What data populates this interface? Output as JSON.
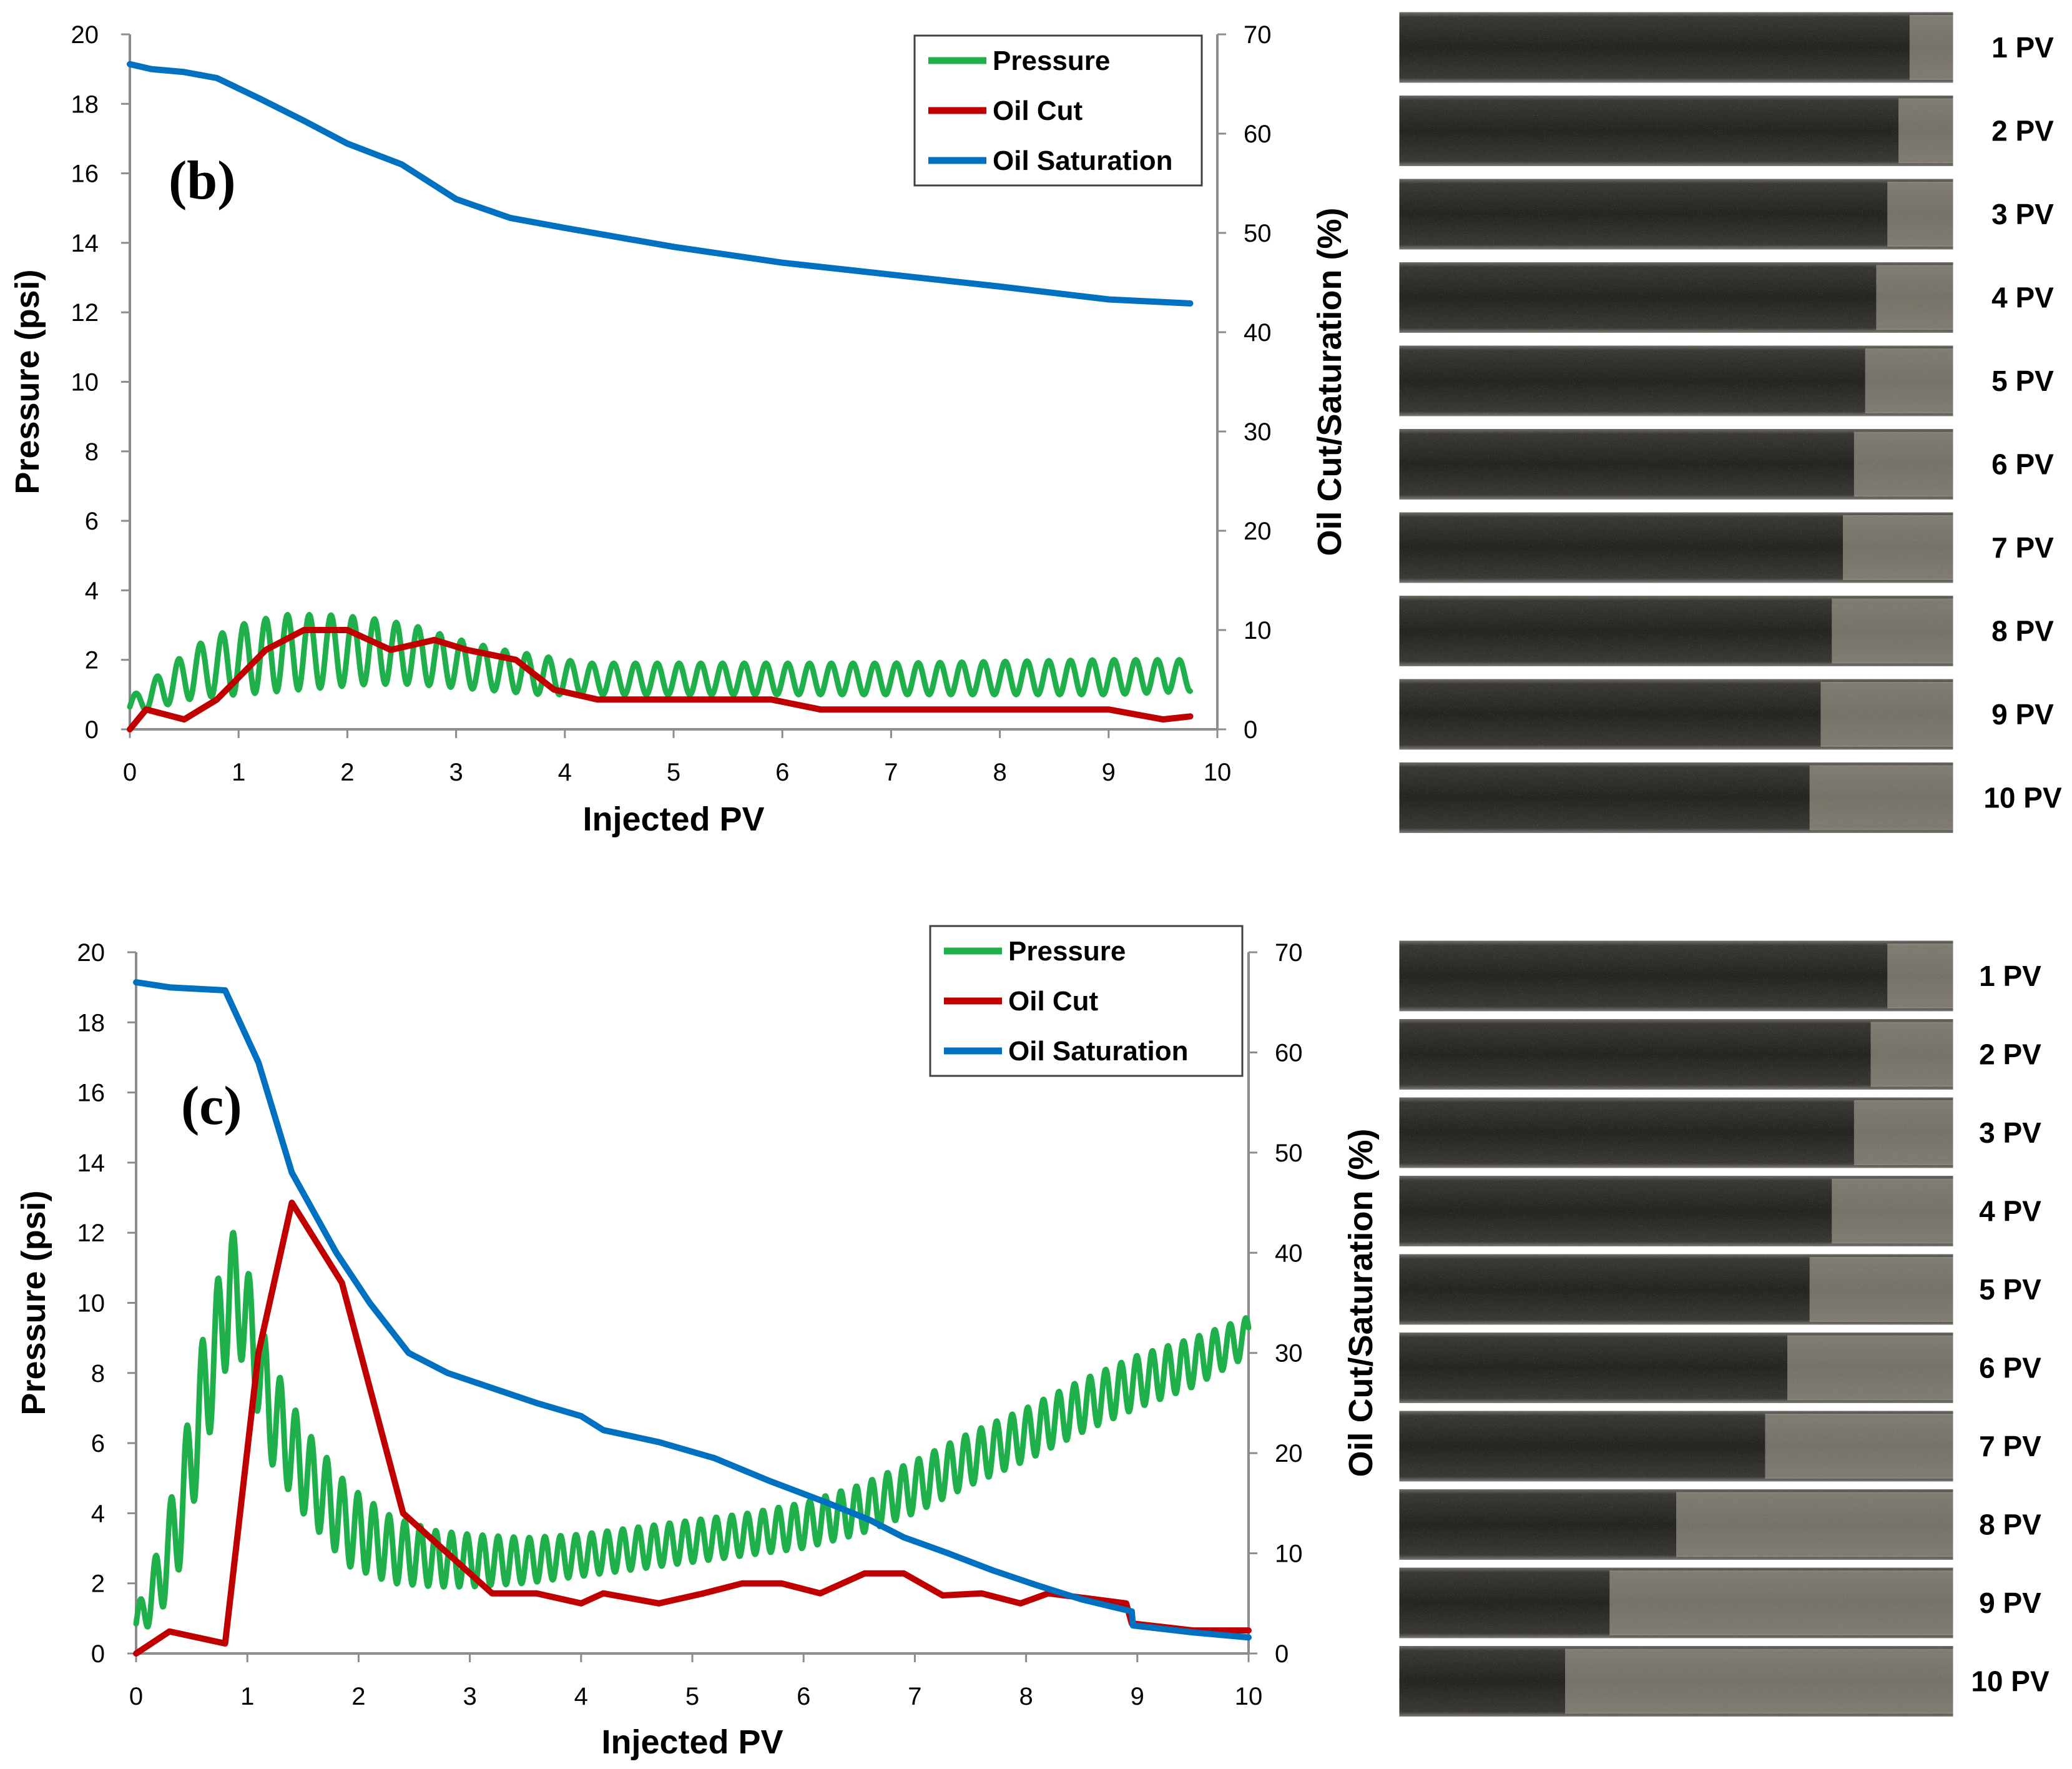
{
  "chart_data": [
    {
      "type": "line",
      "panel_label": "(b)",
      "xlabel": "Injected PV",
      "ylabel": "Pressure (psi)",
      "y2label": "Oil Cut/Saturation (%)",
      "xlim": [
        0,
        10
      ],
      "ylim": [
        0,
        20
      ],
      "y2lim": [
        0,
        70
      ],
      "xticks": [
        "0",
        "1",
        "2",
        "3",
        "4",
        "5",
        "6",
        "7",
        "8",
        "9",
        "10"
      ],
      "yticks": [
        "0",
        "2",
        "4",
        "6",
        "8",
        "10",
        "12",
        "14",
        "16",
        "18",
        "20"
      ],
      "y2ticks": [
        "0",
        "10",
        "20",
        "30",
        "40",
        "50",
        "60",
        "70"
      ],
      "legend": [
        "Pressure",
        "Oil Cut",
        "Oil Saturation"
      ],
      "legend_position": "top-right",
      "series": [
        {
          "name": "Pressure",
          "axis": "left",
          "color": "#1fb04b",
          "oscillation_period_pv": 0.2,
          "envelope": {
            "x": [
              0,
              0.2,
              0.6,
              1.0,
              1.4,
              1.8,
              2.2,
              2.6,
              3.0,
              3.4,
              3.8,
              4.2,
              5.0,
              6.0,
              7.0,
              8.0,
              9.0,
              9.75
            ],
            "high": [
              0.9,
              1.4,
              2.4,
              3.0,
              3.3,
              3.3,
              3.2,
              3.0,
              2.6,
              2.3,
              2.1,
              1.9,
              1.9,
              1.9,
              1.9,
              1.95,
              2.0,
              2.0
            ],
            "low": [
              0.4,
              0.6,
              0.9,
              1.0,
              1.1,
              1.2,
              1.3,
              1.3,
              1.2,
              1.1,
              1.0,
              1.0,
              1.0,
              1.0,
              1.0,
              1.0,
              1.0,
              1.1
            ]
          }
        },
        {
          "name": "Oil Cut",
          "axis": "right",
          "color": "#c00000",
          "x": [
            0,
            0.15,
            0.5,
            0.8,
            1.25,
            1.6,
            2.0,
            2.4,
            2.8,
            3.1,
            3.55,
            3.9,
            4.3,
            5.0,
            5.9,
            6.35,
            7.0,
            8.0,
            9.0,
            9.5,
            9.75
          ],
          "y": [
            0,
            2,
            1,
            3,
            8,
            10,
            10,
            8,
            9,
            8,
            7,
            4,
            3,
            3,
            3,
            2,
            2,
            2,
            2,
            1,
            1.3
          ]
        },
        {
          "name": "Oil Saturation",
          "axis": "right",
          "color": "#0070c0",
          "x": [
            0,
            0.2,
            0.5,
            0.8,
            1.2,
            1.6,
            2.0,
            2.5,
            3.0,
            3.5,
            4.0,
            5.0,
            6.0,
            7.0,
            8.0,
            9.0,
            9.75
          ],
          "y": [
            67,
            66.5,
            66.2,
            65.6,
            63.5,
            61.3,
            59,
            56.9,
            53.4,
            51.5,
            50.5,
            48.6,
            47,
            45.8,
            44.6,
            43.3,
            42.9
          ]
        }
      ],
      "images": {
        "description_labels": [
          "1 PV",
          "2 PV",
          "3 PV",
          "4 PV",
          "5 PV",
          "6 PV",
          "7 PV",
          "8 PV",
          "9 PV",
          "10 PV"
        ],
        "light_extent": [
          0.08,
          0.1,
          0.12,
          0.14,
          0.16,
          0.18,
          0.2,
          0.22,
          0.24,
          0.26
        ]
      }
    },
    {
      "type": "line",
      "panel_label": "(c)",
      "xlabel": "Injected PV",
      "ylabel": "Pressure (psi)",
      "y2label": "Oil Cut/Saturation (%)",
      "xlim": [
        0,
        10
      ],
      "ylim": [
        0,
        20
      ],
      "y2lim": [
        0,
        70
      ],
      "xticks": [
        "0",
        "1",
        "2",
        "3",
        "4",
        "5",
        "6",
        "7",
        "8",
        "9",
        "10"
      ],
      "yticks": [
        "0",
        "2",
        "4",
        "6",
        "8",
        "10",
        "12",
        "14",
        "16",
        "18",
        "20"
      ],
      "y2ticks": [
        "0",
        "10",
        "20",
        "30",
        "40",
        "50",
        "60",
        "70"
      ],
      "legend": [
        "Pressure",
        "Oil Cut",
        "Oil Saturation"
      ],
      "legend_position": "top-right",
      "series": [
        {
          "name": "Pressure",
          "axis": "left",
          "color": "#1fb04b",
          "oscillation_period_pv": 0.14,
          "envelope": {
            "x": [
              0,
              0.2,
              0.4,
              0.6,
              0.8,
              0.85,
              1.0,
              1.2,
              1.5,
              1.9,
              2.3,
              2.7,
              3.0,
              3.5,
              4.0,
              4.5,
              5.0,
              5.5,
              6.0,
              6.5,
              7.0,
              7.5,
              8.0,
              8.5,
              9.0,
              9.5,
              10.0
            ],
            "high": [
              1.2,
              3.0,
              5.5,
              9.0,
              11.5,
              12.2,
              11.0,
              8.5,
              6.5,
              4.8,
              3.9,
              3.5,
              3.4,
              3.3,
              3.4,
              3.6,
              3.8,
              4.0,
              4.3,
              4.8,
              5.5,
              6.3,
              7.0,
              7.8,
              8.5,
              9.0,
              9.6
            ],
            "low": [
              0.5,
              1.0,
              2.5,
              5.5,
              8.0,
              9.0,
              8.0,
              5.5,
              4.0,
              2.5,
              2.0,
              1.9,
              1.9,
              2.0,
              2.2,
              2.4,
              2.6,
              2.8,
              3.0,
              3.4,
              4.0,
              4.8,
              5.5,
              6.3,
              7.0,
              7.6,
              8.5
            ]
          }
        },
        {
          "name": "Oil Cut",
          "axis": "right",
          "color": "#c00000",
          "x": [
            0,
            0.3,
            0.8,
            1.1,
            1.4,
            1.85,
            2.4,
            2.9,
            3.2,
            3.6,
            4.0,
            4.2,
            4.7,
            5.1,
            5.45,
            5.8,
            6.15,
            6.55,
            6.9,
            7.25,
            7.6,
            7.95,
            8.2,
            8.9,
            8.95,
            9.5,
            10.0
          ],
          "y": [
            0,
            2.2,
            1,
            30,
            45,
            37,
            14,
            9,
            6,
            6,
            5,
            6,
            5,
            6,
            7,
            7,
            6,
            8,
            8,
            5.8,
            6,
            5,
            6,
            5,
            3,
            2.3,
            2.3
          ]
        },
        {
          "name": "Oil Saturation",
          "axis": "right",
          "color": "#0070c0",
          "x": [
            0,
            0.3,
            0.8,
            1.1,
            1.4,
            1.8,
            2.1,
            2.45,
            2.8,
            3.2,
            3.6,
            4.0,
            4.2,
            4.7,
            5.2,
            5.7,
            6.2,
            6.6,
            6.9,
            7.3,
            7.7,
            8.1,
            8.5,
            8.95,
            8.96,
            9.5,
            10.0
          ],
          "y": [
            67,
            66.5,
            66.2,
            59,
            48,
            40,
            35,
            30,
            28,
            26.5,
            25,
            23.7,
            22.3,
            21.1,
            19.5,
            17.2,
            15.1,
            13.3,
            11.6,
            10,
            8.3,
            6.8,
            5.4,
            4.2,
            2.8,
            2.1,
            1.6
          ]
        }
      ],
      "images": {
        "description_labels": [
          "1 PV",
          "2 PV",
          "3 PV",
          "4 PV",
          "5 PV",
          "6 PV",
          "7 PV",
          "8 PV",
          "9 PV",
          "10 PV"
        ],
        "light_extent": [
          0.12,
          0.15,
          0.18,
          0.22,
          0.26,
          0.3,
          0.34,
          0.5,
          0.62,
          0.7
        ]
      }
    }
  ]
}
